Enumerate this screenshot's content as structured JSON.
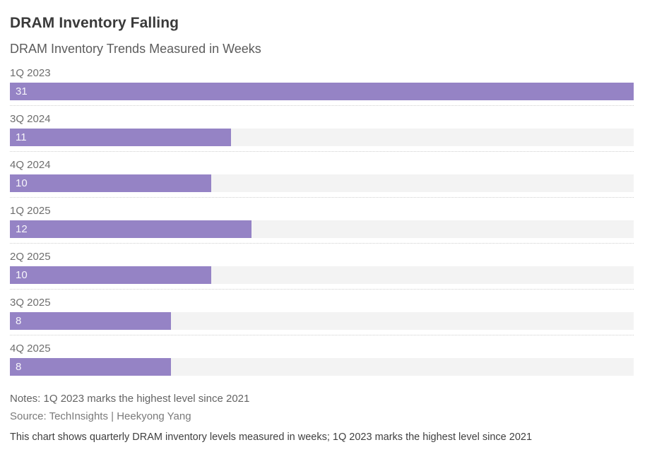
{
  "header": {
    "title": "DRAM Inventory Falling",
    "subtitle": "DRAM Inventory Trends Measured in Weeks"
  },
  "chart_data": {
    "type": "bar",
    "orientation": "horizontal",
    "title": "DRAM Inventory Falling",
    "subtitle": "DRAM Inventory Trends Measured in Weeks",
    "categories": [
      "1Q 2023",
      "3Q 2024",
      "4Q 2024",
      "1Q 2025",
      "2Q 2025",
      "3Q 2025",
      "4Q 2025"
    ],
    "values": [
      31,
      11,
      10,
      12,
      10,
      8,
      8
    ],
    "unit": "weeks",
    "xlim": [
      0,
      31
    ],
    "value_labels_inside_bar": true,
    "grid": false,
    "legend": "none",
    "bar_color": "#9583c5",
    "track_color": "#f3f3f3",
    "value_label_color": "#ffffff",
    "separator_style": "dotted"
  },
  "footer": {
    "notes": "Notes: 1Q 2023 marks the highest level since 2021",
    "source": "Source: TechInsights | Heekyong Yang",
    "caption": "This chart shows quarterly DRAM inventory levels measured in weeks; 1Q 2023 marks the highest level since 2021"
  }
}
